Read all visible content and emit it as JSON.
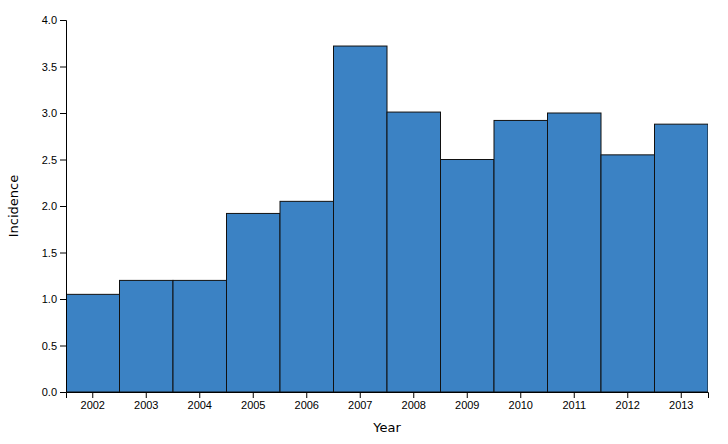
{
  "chart_data": {
    "type": "bar",
    "categories": [
      "2002",
      "2003",
      "2004",
      "2005",
      "2006",
      "2007",
      "2008",
      "2009",
      "2010",
      "2011",
      "2012",
      "2013"
    ],
    "values": [
      1.05,
      1.2,
      1.2,
      1.92,
      2.05,
      3.72,
      3.01,
      2.5,
      2.92,
      3.0,
      2.55,
      2.88
    ],
    "color": "#3b82c4",
    "xlabel": "Year",
    "ylabel": "Incidence",
    "ylim": [
      0.0,
      4.0
    ],
    "yticks": [
      {
        "value": 0.0,
        "label": "0.0"
      },
      0.5,
      {
        "value": 1.0,
        "label": "1.0"
      },
      1.5,
      {
        "value": 2.0,
        "label": "2.0"
      },
      2.5,
      {
        "value": 3.0,
        "label": "3.0"
      },
      3.5,
      {
        "value": 4.0,
        "label": "4.0"
      }
    ],
    "grid": false
  }
}
